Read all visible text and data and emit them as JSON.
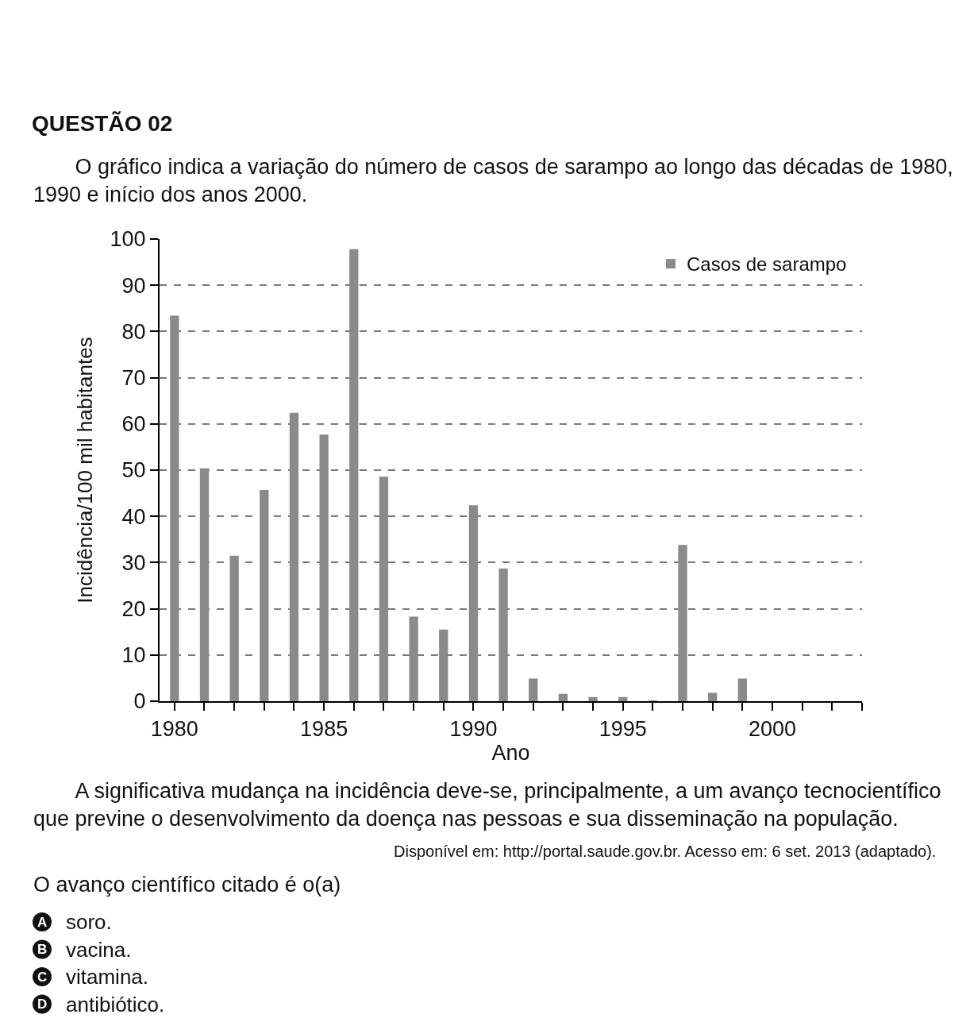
{
  "chart_data": {
    "type": "bar",
    "title": "QUESTÃO 02",
    "subtitle": "O gráfico indica a variação do número de casos de sarampo ao longo das décadas de 1980, 1990 e início dos anos 2000.",
    "xlabel": "Ano",
    "ylabel": "Incidência/100 mil habitantes",
    "x": [
      1980,
      1981,
      1982,
      1983,
      1984,
      1985,
      1986,
      1987,
      1988,
      1989,
      1990,
      1991,
      1992,
      1993,
      1994,
      1995,
      1996,
      1997,
      1998,
      1999
    ],
    "series": [
      {
        "name": "Casos de sarampo",
        "color": "#8a8a8a",
        "values": [
          83.4,
          50.4,
          31.5,
          45.7,
          62.4,
          57.7,
          97.8,
          48.6,
          18.3,
          15.5,
          42.4,
          28.7,
          4.9,
          1.6,
          0.9,
          0.9,
          0.1,
          33.8,
          1.8,
          4.9
        ]
      }
    ],
    "xlim": [
      1979.5,
      2003
    ],
    "xticks": [
      1980,
      {
        "value": 1981,
        "label": null
      },
      {
        "value": 1982,
        "label": null
      },
      {
        "value": 1983,
        "label": null
      },
      {
        "value": 1984,
        "label": null
      },
      1985,
      {
        "value": 1986,
        "label": null
      },
      {
        "value": 1987,
        "label": null
      },
      {
        "value": 1988,
        "label": null
      },
      {
        "value": 1989,
        "label": null
      },
      1990,
      {
        "value": 1991,
        "label": null
      },
      {
        "value": 1992,
        "label": null
      },
      {
        "value": 1993,
        "label": null
      },
      {
        "value": 1994,
        "label": null
      },
      1995,
      {
        "value": 1996,
        "label": null
      },
      {
        "value": 1997,
        "label": null
      },
      {
        "value": 1998,
        "label": null
      },
      {
        "value": 1999,
        "label": null
      },
      2000,
      {
        "value": 2001,
        "label": null
      },
      {
        "value": 2002,
        "label": null
      },
      {
        "value": 2003,
        "label": null
      }
    ],
    "ylim": [
      0,
      100
    ],
    "yticks": [
      0,
      10,
      20,
      30,
      40,
      50,
      60,
      70,
      80,
      90,
      100
    ],
    "grid": "y",
    "legend": "top right",
    "annotations": [
      "A significativa mudança na incidência deve-se, principalmente, a um avanço tecnocientífico que previne o desenvolvimento da doença nas pessoas e sua disseminação na população.",
      "Disponível em: http://portal.saude.gov.br. Acesso em: 6 set. 2013 (adaptado).",
      "O avanço científico citado é o(a)",
      "A soro.",
      "B vacina.",
      "C vitamina.",
      "D antibiótico."
    ]
  }
}
